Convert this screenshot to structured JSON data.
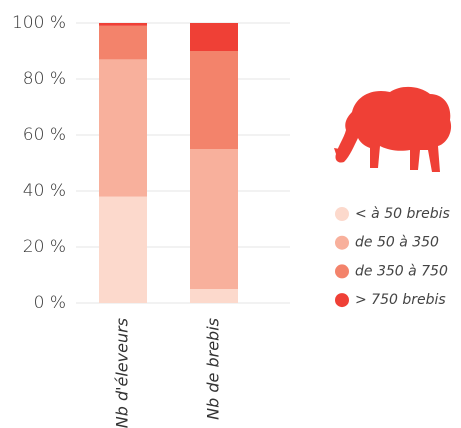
{
  "chart_data": {
    "type": "stacked_bar",
    "categories": [
      "Nb d'éleveurs",
      "Nb de brebis"
    ],
    "series": [
      {
        "name": "< à 50 brebis",
        "color": "#fcd9cc",
        "values": [
          38,
          5
        ]
      },
      {
        "name": "de 50 à 350",
        "color": "#f8b09c",
        "values": [
          49,
          50
        ]
      },
      {
        "name": "de 350 à 750",
        "color": "#f3836b",
        "values": [
          12,
          35
        ]
      },
      {
        "name": "> 750 brebis",
        "color": "#ef4036",
        "values": [
          1,
          10
        ]
      }
    ],
    "ylim": [
      0,
      100
    ],
    "yticks": [
      {
        "value": 0,
        "label": "0 %"
      },
      {
        "value": 20,
        "label": "20 %"
      },
      {
        "value": 40,
        "label": "40 %"
      },
      {
        "value": 60,
        "label": "60 %"
      },
      {
        "value": 80,
        "label": "80 %"
      },
      {
        "value": 100,
        "label": "100 %"
      }
    ],
    "grid": true
  }
}
